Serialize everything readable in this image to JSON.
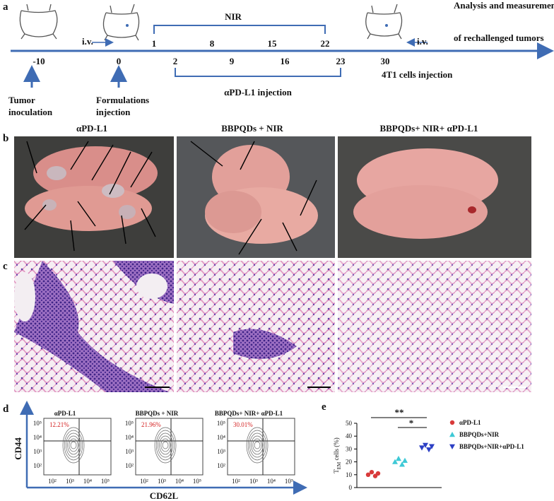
{
  "panel_labels": [
    "a",
    "b",
    "c",
    "d",
    "e"
  ],
  "timeline": {
    "top_days": [
      "1",
      "8",
      "15",
      "22"
    ],
    "bottom_days": [
      "-10",
      "0",
      "2",
      "9",
      "16",
      "23",
      "30"
    ],
    "nir": "NIR",
    "antibody": "αPD-L1 injection",
    "cells": "4T1 cells injection",
    "iv": [
      "i.v.",
      "i.v."
    ],
    "analysis": [
      "Analysis and measurement",
      "of rechallenged tumors"
    ],
    "tumor": [
      "Tumor",
      "inoculation"
    ],
    "formulation": [
      "Formulations",
      "injection"
    ]
  },
  "groups": [
    "αPD-L1",
    "BBPQDs + NIR",
    "BBPQDs+ NIR+ αPD-L1"
  ],
  "flow": {
    "percents": [
      "12.21%",
      "21.96%",
      "30.01%"
    ],
    "x_ticks": [
      "10²",
      "10³",
      "10⁴",
      "10⁵"
    ],
    "y_ticks": [
      "10⁵",
      "10⁴",
      "10³",
      "10²"
    ],
    "x_label": "CD62L",
    "y_label": "CD44"
  },
  "chart_data": {
    "type": "scatter",
    "y_label": [
      "T",
      "EM",
      " cells (%)"
    ],
    "ylim": [
      0,
      50
    ],
    "yticks": [
      0,
      10,
      20,
      30,
      40,
      50
    ],
    "series": [
      {
        "name": "αPD-L1",
        "color": "#d83a3a",
        "marker": "circle",
        "values": [
          10,
          12,
          9,
          11
        ]
      },
      {
        "name": "BBPQDs+NIR",
        "color": "#3ec9d6",
        "marker": "triangle-up",
        "values": [
          20,
          22.5,
          18,
          21
        ]
      },
      {
        "name": "BBPQDs+NIR+αPD-L1",
        "color": "#2c3fc4",
        "marker": "triangle-down",
        "values": [
          31,
          33,
          29.5,
          32
        ]
      }
    ],
    "significance": [
      "**",
      "*"
    ]
  }
}
